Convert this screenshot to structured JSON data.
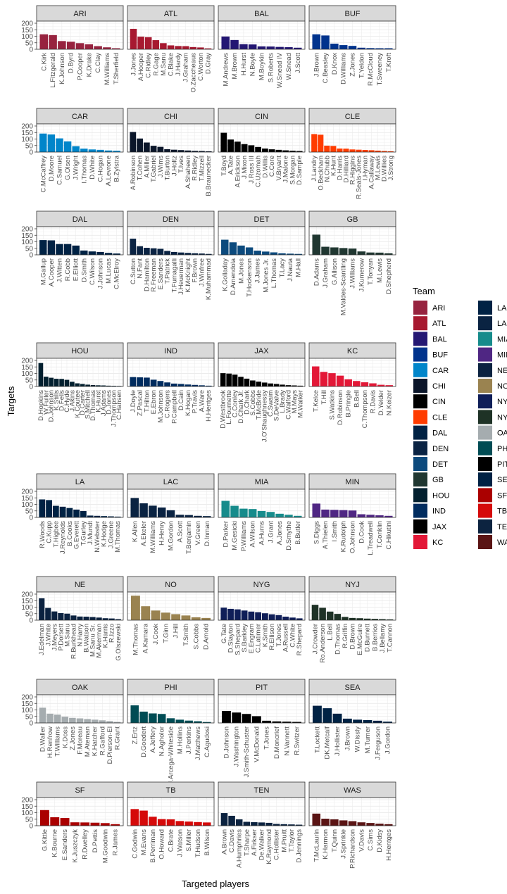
{
  "chart_data": {
    "type": "bar",
    "facet_by": "team",
    "xlabel": "Targeted players",
    "ylabel": "Targets",
    "ylim": [
      0,
      200
    ],
    "y_ticks": [
      0,
      50,
      100,
      150,
      200
    ],
    "legend": {
      "title": "Team",
      "placement": "right"
    },
    "grid": true,
    "panels": [
      {
        "team": "ARI",
        "color": "#97233F",
        "players": [
          "C.Kirk",
          "L.Fitzgerald",
          "K.Johnson",
          "D.Byrd",
          "P.Cooper",
          "K.Drake",
          "C.Clay",
          "M.Williams",
          "T.Sherfield"
        ],
        "values": [
          115,
          109,
          63,
          58,
          47,
          38,
          24,
          15,
          8
        ]
      },
      {
        "team": "ATL",
        "color": "#A71930",
        "players": [
          "J.Jones",
          "A.Hooper",
          "C.Ridley",
          "R.Gage",
          "M.Sanu",
          "C.Blake",
          "J.Hardy",
          "J.Graham",
          "O.Zaccheaus",
          "C.Worton",
          "D.Gray"
        ],
        "values": [
          157,
          97,
          93,
          70,
          47,
          30,
          25,
          24,
          17,
          14,
          7
        ]
      },
      {
        "team": "BAL",
        "color": "#241773",
        "players": [
          "M.Andrews",
          "M.Brown",
          "H.Hurst",
          "N.Boyle",
          "M.Boykin",
          "S.Roberts",
          "W.Snead IV",
          "W.Snead",
          "J.Scott"
        ],
        "values": [
          98,
          71,
          39,
          37,
          22,
          21,
          18,
          16,
          12
        ]
      },
      {
        "team": "BUF",
        "color": "#00338D",
        "players": [
          "J.Brown",
          "C.Beasley",
          "D.Knox",
          "D.Williams",
          "Z.Jones",
          "T.Yeldon",
          "R.McCloud",
          "T.Sweeney",
          "T.Kroft"
        ],
        "values": [
          115,
          106,
          43,
          32,
          26,
          12,
          9,
          8,
          8
        ]
      },
      {
        "team": "CAR",
        "color": "#0085CA",
        "players": [
          "C.McCaffrey",
          "D.Moore",
          "C.Samuel",
          "G.Olsen",
          "J.Wright",
          "I.Thomas",
          "D.White",
          "C.Hogan",
          "A.Levrone",
          "B.Zylstra"
        ],
        "values": [
          142,
          135,
          105,
          82,
          45,
          26,
          20,
          17,
          12,
          10
        ]
      },
      {
        "team": "CHI",
        "color": "#0B162A",
        "players": [
          "A.Robinson",
          "T.Cohen",
          "A.Miller",
          "T.Gabriel",
          "J.Wims",
          "T.Burton",
          "J.Holtz",
          "T.Ives",
          "A.Shaheen",
          "R.Ridley",
          "T.Mizzell",
          "B.Braunecker"
        ],
        "values": [
          154,
          104,
          73,
          48,
          40,
          22,
          18,
          15,
          12,
          9,
          8,
          6
        ]
      },
      {
        "team": "CIN",
        "color": "#000000",
        "players": [
          "T.Boyd",
          "A.Tate",
          "A.Erickson",
          "J.Mixon",
          "J.Ross III",
          "C.Uzomah",
          "D.Willis",
          "C.Core",
          "V.Bryant",
          "J.Malone",
          "S.Morgan",
          "D.Sample"
        ],
        "values": [
          148,
          96,
          80,
          61,
          52,
          39,
          27,
          21,
          17,
          13,
          10,
          8
        ]
      },
      {
        "team": "CLE",
        "color": "#FF3C00",
        "players": [
          "J.Landry",
          "O.Beckham",
          "N.Chubb",
          "K.Hunt",
          "D.Harris",
          "D.Hilliard",
          "R.Higgins",
          "R.Seals-Jones",
          "I.Hyman",
          "A.Callaway",
          "M.Lewis",
          "D.Willies",
          "J.Strong"
        ],
        "values": [
          138,
          133,
          49,
          47,
          27,
          26,
          20,
          18,
          16,
          14,
          11,
          8,
          6
        ]
      },
      {
        "team": "DAL",
        "color": "#002244",
        "players": [
          "M.Gallup",
          "A.Cooper",
          "J.Witten",
          "R.Cobb",
          "E.Elliott",
          "D.Smith",
          "C.Wilson",
          "J.Johnson",
          "M.Lucas",
          "C.McElroy"
        ],
        "values": [
          113,
          111,
          83,
          83,
          71,
          33,
          26,
          22,
          15,
          10
        ]
      },
      {
        "team": "DEN",
        "color": "#0A2343",
        "players": [
          "C.Sutton",
          "N.Fant",
          "D.Hamilton",
          "R.Freeman",
          "E.Sanders",
          "T.Patrick",
          "T.Fumagalli",
          "J.Heuerman",
          "K.McKnight",
          "F.Brown",
          "J.Winfree",
          "K.Muhammad"
        ],
        "values": [
          124,
          66,
          54,
          50,
          46,
          30,
          22,
          18,
          15,
          12,
          10,
          7
        ]
      },
      {
        "team": "DET",
        "color": "#0C4A7D",
        "players": [
          "K.Golladay",
          "D.Amendola",
          "M.Jones",
          "T.Hockenson",
          "J.James",
          "M.Jones Jr.",
          "L.Thomas",
          "T.Lacy",
          "J.Nauta",
          "M.Hall"
        ],
        "values": [
          116,
          96,
          71,
          57,
          32,
          25,
          19,
          12,
          9,
          7
        ]
      },
      {
        "team": "GB",
        "color": "#203731",
        "players": [
          "D.Adams",
          "J.Graham",
          "G.Allison",
          "M.Valdes-Scantling",
          "J.Williams",
          "J.Kumerow",
          "T.Tonyan",
          "M.Lewis",
          "D.Shepherd"
        ],
        "values": [
          155,
          62,
          57,
          52,
          48,
          26,
          18,
          17,
          12
        ]
      },
      {
        "team": "HOU",
        "color": "#03202F",
        "players": [
          "D.Hopkins",
          "W.Fuller",
          "D.Johnson",
          "K.Stills",
          "D.Fells",
          "C.Hyde",
          "J.Akins",
          "K.Coutee",
          "D.Carter",
          "S.Mitchell",
          "D.Thomas",
          "K.Hurst",
          "J.Adams",
          "D.Jones",
          "J.Thompson",
          "C.Hansen"
        ],
        "values": [
          180,
          75,
          67,
          59,
          58,
          51,
          36,
          24,
          19,
          14,
          11,
          9,
          8,
          6,
          5,
          4
        ]
      },
      {
        "team": "IND",
        "color": "#002C5F",
        "players": [
          "J.Doyle",
          "Z.Pascal",
          "T.Hilton",
          "E.Ebron",
          "M.Johnson",
          "C.Rogers",
          "P.Campbell",
          "D.Cain",
          "K.Hogan",
          "P.Travis",
          "A.Ware",
          "H.Hentges"
        ],
        "values": [
          72,
          70,
          68,
          52,
          42,
          31,
          22,
          19,
          15,
          12,
          9,
          6
        ]
      },
      {
        "team": "JAX",
        "color": "#000000",
        "players": [
          "D.Westbrook",
          "L.Fournette",
          "C.Conley",
          "D.Chark Jr.",
          "D.Chark",
          "S.Cobbs",
          "T.McBride",
          "J.O'Shaughnessy",
          "C.Swaim",
          "S.DeValve",
          "L.Brady",
          "C.Walford",
          "M.Mays",
          "M.Walker"
        ],
        "values": [
          102,
          99,
          91,
          74,
          60,
          46,
          37,
          30,
          23,
          19,
          14,
          10,
          8,
          6
        ]
      },
      {
        "team": "KC",
        "color": "#E31837",
        "players": [
          "T.Kelce",
          "T.Hill",
          "S.Watkins",
          "D.Robinson",
          "B.Pringle",
          "B.Bell",
          "C.Thompson",
          "R.Davis",
          "D.Yelder",
          "N.Keizer"
        ],
        "values": [
          154,
          112,
          102,
          83,
          55,
          42,
          32,
          24,
          13,
          10
        ]
      },
      {
        "team": "LA",
        "color": "#002244",
        "players": [
          "R.Woods",
          "C.Kupp",
          "T.Higbee",
          "J.Reynolds",
          "B.Cooks",
          "G.Everett",
          "T.Gurley",
          "J.Mundt",
          "N.Webster",
          "K.Hodge",
          "J.Greene",
          "M.Thomas"
        ],
        "values": [
          138,
          133,
          89,
          82,
          72,
          60,
          49,
          14,
          12,
          10,
          8,
          6
        ]
      },
      {
        "team": "LAC",
        "color": "#0A2342",
        "players": [
          "K.Allen",
          "A.Ekeler",
          "M.Williams",
          "H.Henry",
          "M.Gordon",
          "A.Scott",
          "T.Benjamin",
          "V.Green",
          "D.Inman"
        ],
        "values": [
          149,
          108,
          90,
          76,
          55,
          20,
          18,
          12,
          10
        ]
      },
      {
        "team": "MIA",
        "color": "#168B8B",
        "players": [
          "D.Parker",
          "M.Gesicki",
          "P.Williams",
          "A.Wilson",
          "A.Hurns",
          "J.Grant",
          "A.Jones",
          "D.Smythe",
          "B.Butler"
        ],
        "values": [
          127,
          89,
          67,
          64,
          49,
          42,
          28,
          20,
          12
        ]
      },
      {
        "team": "MIN",
        "color": "#4F2683",
        "players": [
          "S.Diggs",
          "A.Thielen",
          "I.Smith",
          "K.Rudolph",
          "O.Johnson",
          "D.Cook",
          "L.Treadwell",
          "T.Conklin",
          "C.Hikutini"
        ],
        "values": [
          106,
          60,
          58,
          56,
          53,
          24,
          20,
          16,
          12
        ]
      },
      {
        "team": "NE",
        "color": "#0B2240",
        "players": [
          "J.Edelman",
          "J.White",
          "J.Meyers",
          "P.Dorsett",
          "M.Sanu",
          "R.Burkhead",
          "N.Harry",
          "B.Watson",
          "M.Sanu Sr.",
          "M.Akerman",
          "K.Harris",
          "R.Izzo",
          "G.Olszewski"
        ],
        "values": [
          168,
          94,
          67,
          54,
          50,
          36,
          28,
          27,
          24,
          20,
          15,
          13,
          8
        ]
      },
      {
        "team": "NO",
        "color": "#9A8350",
        "players": [
          "M.Thomas",
          "A.Kamara",
          "J.Cook",
          "T.Ginn",
          "J.Hill",
          "T.Smith",
          "S.Cobbs",
          "D.Arnold"
        ],
        "values": [
          188,
          107,
          74,
          58,
          46,
          36,
          22,
          17
        ]
      },
      {
        "team": "NYG",
        "color": "#0F1E58",
        "players": [
          "G.Tate",
          "D.Slayton",
          "S.Shepard",
          "S.Barkley",
          "E.Engram",
          "C.Latimer",
          "K.Smith",
          "R.Ellison",
          "T.Jones",
          "A.Russell",
          "C.White",
          "R.Shepard"
        ],
        "values": [
          96,
          87,
          83,
          74,
          66,
          61,
          53,
          45,
          39,
          27,
          20,
          14
        ]
      },
      {
        "team": "NYJ",
        "color": "#1E3226",
        "players": [
          "J.Crowder",
          "Ro.Anderson",
          "L.Bell",
          "D.Thomas",
          "R.Griffin",
          "D.Brown",
          "E.McGuire",
          "D.Burnett",
          "B.Berrios",
          "J.Bellamy",
          "T.Cannon"
        ],
        "values": [
          118,
          95,
          66,
          48,
          25,
          17,
          15,
          12,
          10,
          8,
          6
        ]
      },
      {
        "team": "OAK",
        "color": "#A5ACAF",
        "players": [
          "D.Waller",
          "H.Renfrow",
          "T.Williams",
          "K.Doss",
          "Z.Jones",
          "F.Moreau",
          "M.Ateman",
          "K.Hatcher",
          "R.Gafford",
          "D.Pierson-El",
          "R.Grant"
        ],
        "values": [
          117,
          71,
          64,
          48,
          39,
          35,
          30,
          25,
          20,
          14,
          8
        ]
      },
      {
        "team": "PHI",
        "color": "#004C54",
        "players": [
          "Z.Ertz",
          "D.Goedert",
          "A.Jeffery",
          "N.Agholor",
          "J.Arcega-Whiteside",
          "M.Hollins",
          "J.Perkins",
          "J.Matthews",
          "C.Agudosi"
        ],
        "values": [
          135,
          87,
          73,
          69,
          36,
          25,
          18,
          13,
          7
        ]
      },
      {
        "team": "PIT",
        "color": "#000000",
        "players": [
          "D.Johnson",
          "J.Washington",
          "J.Smith-Schuster",
          "V.McDonald",
          "T.Jones",
          "D.Moncrief",
          "N.Vannett",
          "R.Switzer"
        ],
        "values": [
          92,
          80,
          69,
          52,
          17,
          12,
          10,
          8
        ]
      },
      {
        "team": "SEA",
        "color": "#002244",
        "players": [
          "T.Lockett",
          "DK.Metcalf",
          "J.Hollister",
          "J.Brown",
          "W.Dissly",
          "M.Turner",
          "J.Ferguson",
          "J.Gordon"
        ],
        "values": [
          132,
          113,
          71,
          33,
          25,
          22,
          17,
          10
        ]
      },
      {
        "team": "SF",
        "color": "#AA0000",
        "players": [
          "G.Kittle",
          "K.Bourne",
          "E.Sanders",
          "K.Juszczyk",
          "R.Dwelley",
          "D.Pettis",
          "M.Goodwin",
          "R.James"
        ],
        "values": [
          120,
          65,
          59,
          26,
          25,
          23,
          20,
          12
        ]
      },
      {
        "team": "TB",
        "color": "#D50A0A",
        "players": [
          "C.Godwin",
          "M.Evans",
          "B.Perriman",
          "O.Howard",
          "C.Brate",
          "J.Watson",
          "S.Miller",
          "T.Hudson",
          "B.Wilson"
        ],
        "values": [
          128,
          116,
          69,
          51,
          49,
          36,
          32,
          28,
          25
        ]
      },
      {
        "team": "TEN",
        "color": "#0C2340",
        "players": [
          "A.Brown",
          "C.Davis",
          "A.Humphries",
          "T.Sharpe",
          "A.Firkser",
          "De.Walker",
          "K.Raymond",
          "C.Hollister",
          "M.Pruitt",
          "T.Taylor",
          "D.Jennings"
        ],
        "values": [
          97,
          76,
          49,
          30,
          27,
          25,
          22,
          14,
          12,
          10,
          8
        ]
      },
      {
        "team": "WAS",
        "color": "#5A1414",
        "players": [
          "T.McLaurin",
          "K.Harmon",
          "T.Quinn",
          "J.Sprinkle",
          "P.Richardson",
          "V.Davis",
          "C.Sims",
          "D.Kidsy",
          "H.Hentges"
        ],
        "values": [
          93,
          54,
          49,
          41,
          35,
          26,
          21,
          16,
          12
        ]
      }
    ],
    "legend_items": [
      "ARI",
      "ATL",
      "BAL",
      "BUF",
      "CAR",
      "CHI",
      "CIN",
      "CLE",
      "DAL",
      "DEN",
      "DET",
      "GB",
      "HOU",
      "IND",
      "JAX",
      "KC",
      "LA",
      "LAC",
      "MIA",
      "MIN",
      "NE",
      "NO",
      "NYG",
      "NYJ",
      "OAK",
      "PHI",
      "PIT",
      "SEA",
      "SF",
      "TB",
      "TEN",
      "WAS"
    ]
  }
}
